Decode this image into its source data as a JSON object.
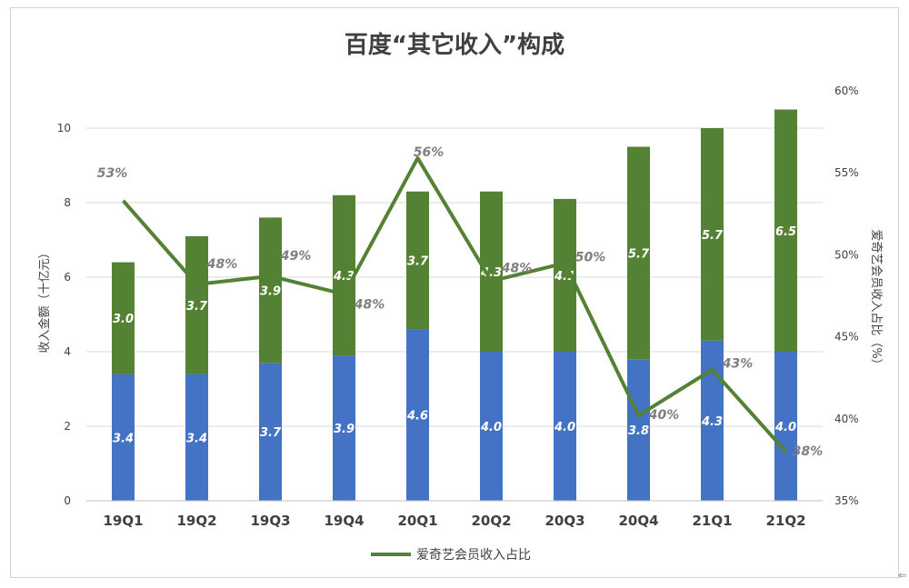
{
  "chart_data": {
    "type": "bar",
    "title": "百度“其它收入”构成",
    "categories": [
      "19Q1",
      "19Q2",
      "19Q3",
      "19Q4",
      "20Q1",
      "20Q2",
      "20Q3",
      "20Q4",
      "21Q1",
      "21Q2"
    ],
    "series": [
      {
        "values": [
          3.4,
          3.4,
          3.7,
          3.9,
          4.6,
          4.0,
          4.0,
          3.8,
          4.3,
          4.0
        ],
        "labels": [
          "3.4",
          "3.4",
          "3.7",
          "3.9",
          "4.6",
          "4.0",
          "4.0",
          "3.8",
          "4.3",
          "4.0"
        ],
        "color": "#4472c4",
        "kind": "bar"
      },
      {
        "values": [
          3.0,
          3.7,
          3.9,
          4.3,
          3.7,
          4.3,
          4.1,
          5.7,
          5.7,
          6.5
        ],
        "labels": [
          "3.0",
          "3.7",
          "3.9",
          "4.3",
          "3.7",
          "4.3",
          "4.1",
          "5.7",
          "5.7",
          "6.5"
        ],
        "color": "#548235",
        "kind": "bar"
      },
      {
        "name": "爱奇艺会员收入占比",
        "kind": "line",
        "axis": "right",
        "color": "#548235",
        "values": [
          53.3,
          48.2,
          48.7,
          47.6,
          55.9,
          48.4,
          49.5,
          40.2,
          43.0,
          38.0
        ],
        "labels": [
          "53%",
          "48%",
          "49%",
          "48%",
          "56%",
          "48%",
          "50%",
          "40%",
          "43%",
          "38%"
        ]
      }
    ],
    "ylabel": "收入金额（十亿元）",
    "y2label": "爱奇艺会员收入占比（%）",
    "ylim": [
      0,
      11
    ],
    "yticks": [
      "0",
      "2",
      "4",
      "6",
      "8",
      "10"
    ],
    "y2lim": [
      35,
      60
    ],
    "y2ticks": [
      "35%",
      "40%",
      "45%",
      "50%",
      "55%",
      "60%"
    ],
    "grid": true,
    "legend": "bottom"
  },
  "footer": {
    "corner_glyph": "⇐"
  }
}
